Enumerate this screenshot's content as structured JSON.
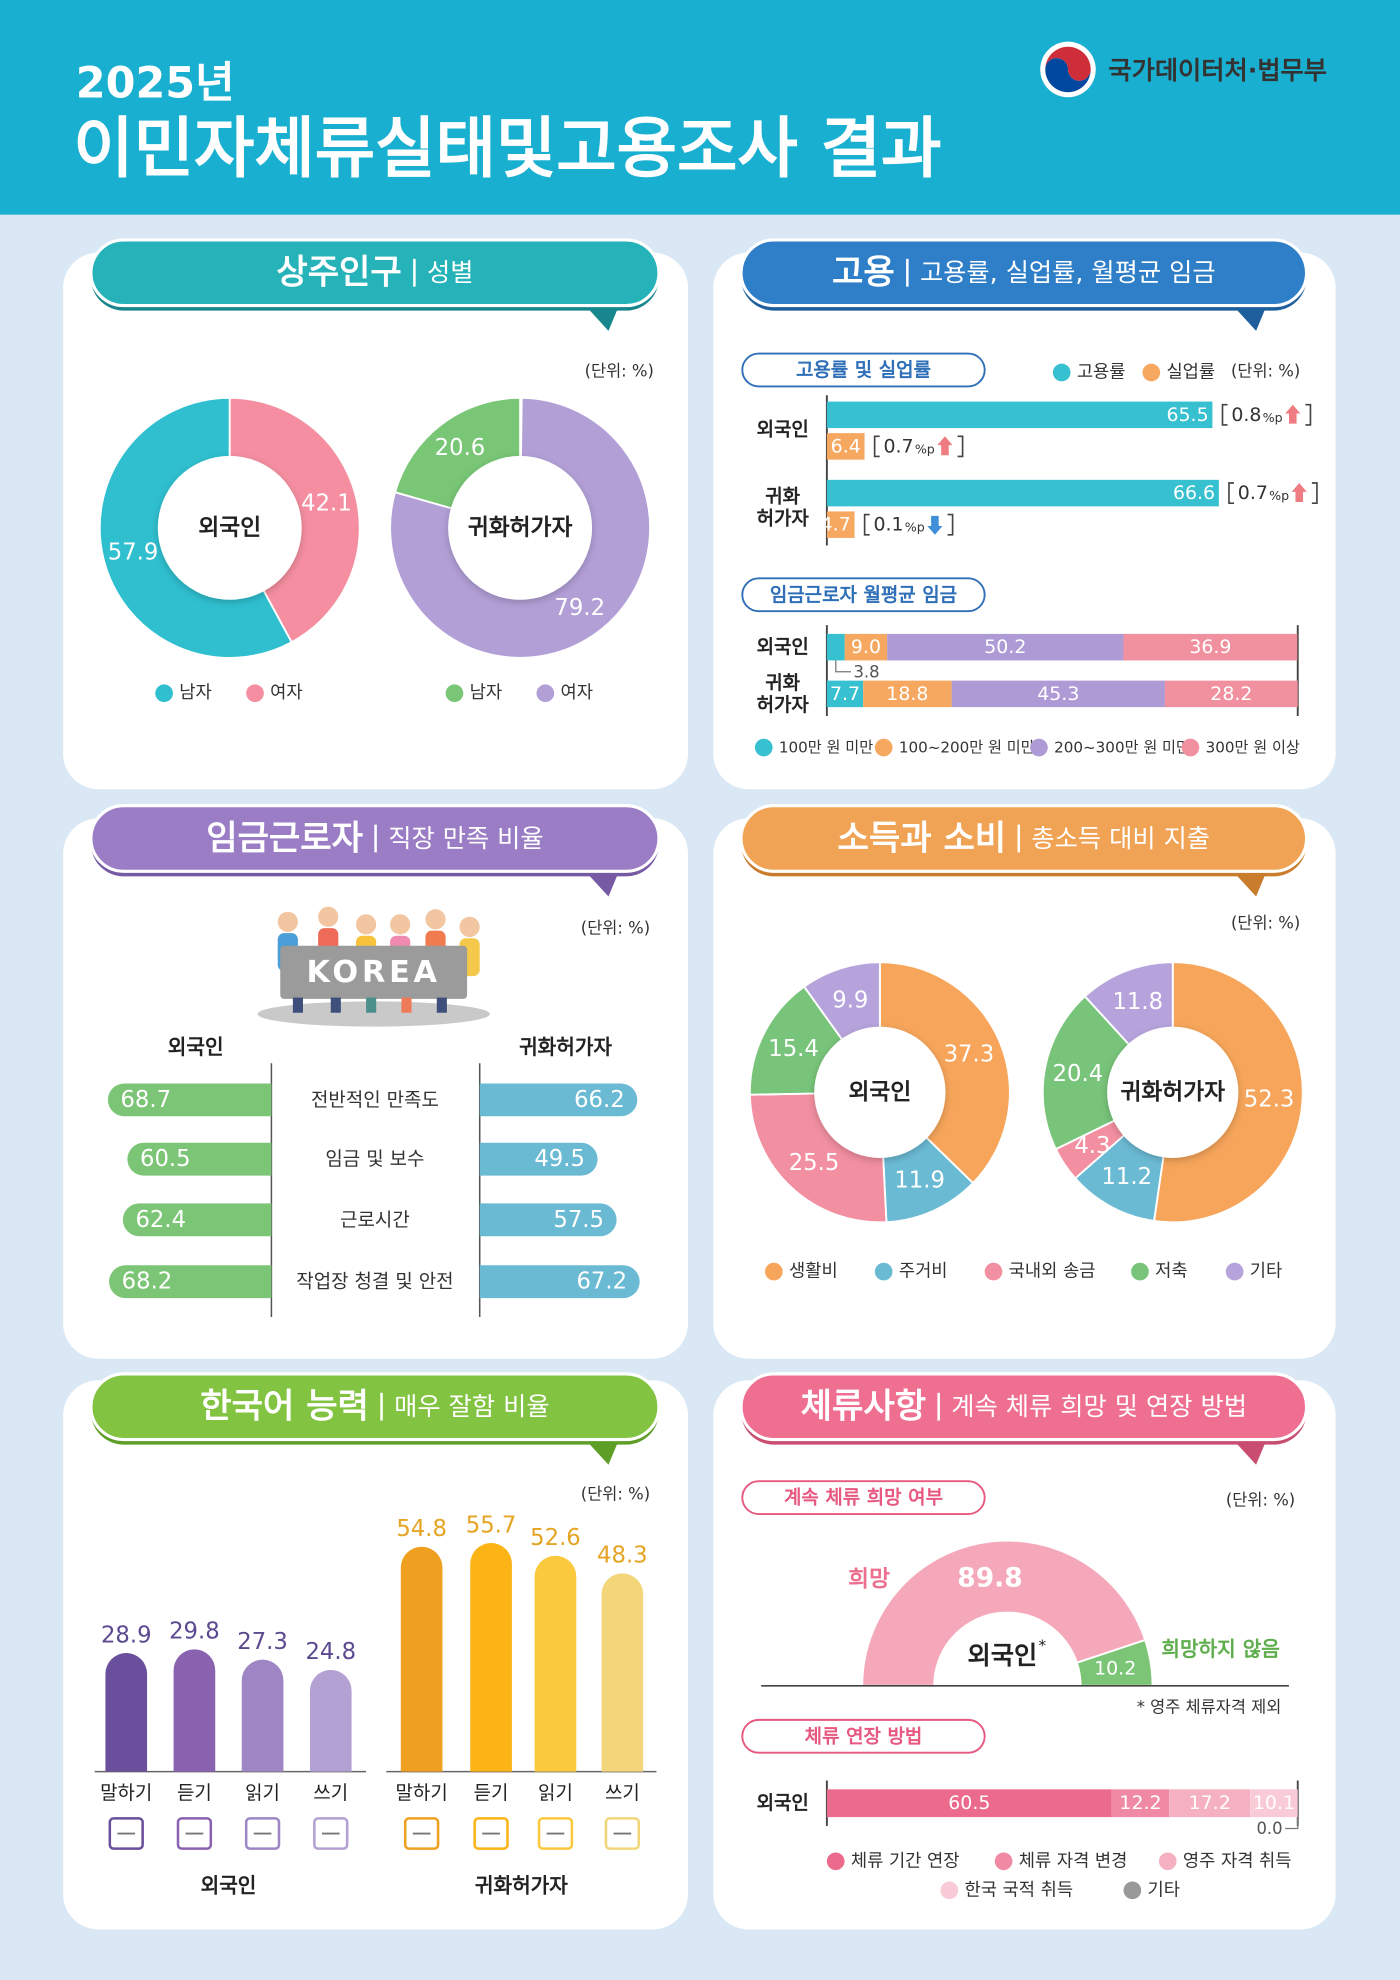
{
  "header": {
    "year": "2025년",
    "title": "이민자체류실태및고용조사 결과",
    "org": "국가데이터처·법무부"
  },
  "chart_data": [
    {
      "type": "donut",
      "title": "상주인구",
      "subtitle": "성별",
      "unit": "(단위: %)",
      "direction": "counterclockwise",
      "pies": [
        {
          "label": "외국인",
          "categories": [
            "남자",
            "여자"
          ],
          "colors": [
            "#2fbfcf",
            "#f48ea0"
          ],
          "values": [
            57.9,
            42.1
          ]
        },
        {
          "label": "귀화허가자",
          "categories": [
            "남자",
            "여자"
          ],
          "colors": [
            "#78c676",
            "#b29fd6"
          ],
          "values": [
            20.6,
            79.2
          ]
        }
      ]
    },
    {
      "type": "bar",
      "title": "고용",
      "subtitle": "고용률, 실업률, 월평균 임금",
      "heading": "고용률 및 실업률",
      "unit": "(단위: %)",
      "categories": [
        "외국인",
        "귀화\n허가자"
      ],
      "xlim": [
        0,
        80
      ],
      "change_unit": "%p",
      "series": [
        {
          "name": "고용률",
          "color": "#36c0d0",
          "values": [
            65.5,
            66.6
          ],
          "changes": [
            0.8,
            0.7
          ],
          "directions": [
            "up",
            "up"
          ]
        },
        {
          "name": "실업률",
          "color": "#f6a860",
          "values": [
            6.4,
            4.7
          ],
          "changes": [
            0.7,
            0.1
          ],
          "directions": [
            "up",
            "down"
          ]
        }
      ]
    },
    {
      "type": "stacked-bar",
      "heading": "임금근로자 월평균 임금",
      "categories": [
        "외국인",
        "귀화\n허가자"
      ],
      "xlim": [
        0,
        100
      ],
      "series": [
        {
          "name": "100만 원 미만",
          "color": "#36c0d0",
          "values": [
            3.8,
            7.7
          ]
        },
        {
          "name": "100~200만 원 미만",
          "color": "#f6a860",
          "values": [
            9.0,
            18.8
          ],
          "value_labels": [
            "9.0",
            "18.8"
          ]
        },
        {
          "name": "200~300만 원 미만",
          "color": "#ae9bd6",
          "values": [
            50.2,
            45.3
          ]
        },
        {
          "name": "300만 원 이상",
          "color": "#f1909e",
          "values": [
            36.9,
            28.2
          ]
        }
      ]
    },
    {
      "type": "diverging-bar",
      "title": "임금근로자",
      "subtitle": "직장 만족 비율",
      "unit": "(단위: %)",
      "sign": "KOREA",
      "categories": [
        "전반적인 만족도",
        "임금 및 보수",
        "근로시간",
        "작업장 청결 및 안전"
      ],
      "xlim": [
        0,
        70
      ],
      "series": [
        {
          "name": "외국인",
          "color": "#7cc576",
          "values": [
            68.7,
            60.5,
            62.4,
            68.2
          ]
        },
        {
          "name": "귀화허가자",
          "color": "#6bbad4",
          "values": [
            66.2,
            49.5,
            57.5,
            67.2
          ]
        }
      ]
    },
    {
      "type": "donut",
      "title": "소득과 소비",
      "subtitle": "총소득 대비 지출",
      "unit": "(단위: %)",
      "direction": "clockwise",
      "categories": [
        "생활비",
        "주거비",
        "국내외 송금",
        "저축",
        "기타"
      ],
      "colors": [
        "#f6a55a",
        "#6bbad4",
        "#f28fa0",
        "#78c47a",
        "#b7a3dc"
      ],
      "pies": [
        {
          "label": "외국인",
          "values": [
            37.3,
            11.9,
            25.5,
            15.4,
            9.9
          ]
        },
        {
          "label": "귀화허가자",
          "values": [
            52.3,
            11.2,
            4.3,
            20.4,
            11.8
          ]
        }
      ]
    },
    {
      "type": "column",
      "title": "한국어 능력",
      "subtitle": "매우 잘함 비율",
      "unit": "(단위: %)",
      "categories": [
        "말하기",
        "듣기",
        "읽기",
        "쓰기"
      ],
      "ylim": [
        0,
        60
      ],
      "series": [
        {
          "name": "외국인",
          "label_color": "#5b4a8f",
          "colors": [
            "#6a4f9c",
            "#8a62b0",
            "#9d86c3",
            "#b3a1d3"
          ],
          "values": [
            28.9,
            29.8,
            27.3,
            24.8
          ]
        },
        {
          "name": "귀화허가자",
          "label_color": "#e6a424",
          "colors": [
            "#f0a020",
            "#fbb316",
            "#fbc93e",
            "#f3d67a"
          ],
          "values": [
            54.8,
            55.7,
            52.6,
            48.3
          ]
        }
      ]
    },
    {
      "type": "half-donut",
      "title": "체류사항",
      "subtitle": "계속 체류 희망 및 연장 방법",
      "heading": "계속 체류 희망 여부",
      "unit": "(단위: %)",
      "label": "외국인",
      "label_mark": "*",
      "note": "* 영주 체류자격 제외",
      "categories": [
        "희망",
        "희망하지 않음"
      ],
      "colors": [
        "#f5a8ba",
        "#7cc576"
      ],
      "values": [
        89.8,
        10.2
      ]
    },
    {
      "type": "stacked-bar",
      "heading": "체류 연장 방법",
      "categories": [
        "외국인"
      ],
      "xlim": [
        0,
        100
      ],
      "series": [
        {
          "name": "체류 기간 연장",
          "color": "#ec6b8c",
          "values": [
            60.5
          ]
        },
        {
          "name": "체류 자격 변경",
          "color": "#f08aa4",
          "values": [
            12.2
          ]
        },
        {
          "name": "영주 자격 취득",
          "color": "#f5b1c2",
          "values": [
            17.2
          ]
        },
        {
          "name": "한국 국적 취득",
          "color": "#f9cbd6",
          "values": [
            10.1
          ]
        },
        {
          "name": "기타",
          "color": "#999999",
          "values": [
            0.0
          ],
          "value_labels": [
            "0.0"
          ]
        }
      ]
    }
  ]
}
